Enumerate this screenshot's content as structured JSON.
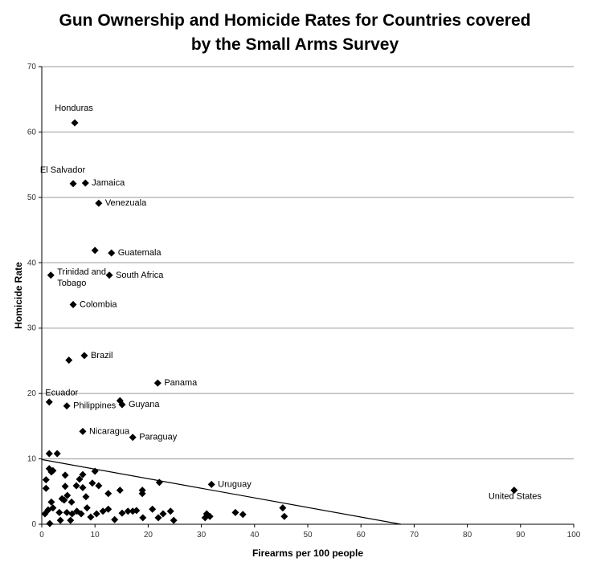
{
  "chart_data": {
    "type": "scatter",
    "title": [
      "Gun Ownership and Homicide Rates for Countries covered",
      "by the Small Arms Survey"
    ],
    "x_label": "Firearms per 100 people",
    "y_label": "Homicide Rate",
    "xlim": [
      0,
      100
    ],
    "xticks": [
      0,
      10,
      20,
      30,
      40,
      50,
      60,
      70,
      80,
      90,
      100
    ],
    "ylim": [
      0,
      70
    ],
    "yticks": [
      0,
      10,
      20,
      30,
      40,
      50,
      60,
      70
    ],
    "grid": true,
    "color": "#000000",
    "x": [
      6.2,
      5.9,
      8.2,
      10.7,
      13.1,
      1.7,
      12.7,
      5.9,
      8.0,
      21.8,
      1.4,
      4.7,
      15.1,
      7.7,
      17.1,
      31.9,
      88.8,
      10.0,
      5.1,
      14.7,
      1.4,
      2.9,
      1.4,
      1.8,
      2.1,
      0.8,
      4.4,
      7.7,
      7.1,
      10.0,
      9.5,
      10.7,
      22.1,
      0.8,
      1.8,
      4.4,
      4.8,
      3.8,
      4.2,
      6.5,
      7.7,
      5.6,
      8.3,
      12.5,
      14.7,
      18.9,
      18.9,
      0.6,
      1.2,
      2.1,
      3.3,
      4.7,
      5.7,
      6.6,
      7.4,
      8.5,
      9.2,
      10.3,
      11.5,
      12.5,
      13.7,
      15.1,
      16.2,
      17.1,
      17.8,
      19.0,
      20.8,
      21.9,
      22.8,
      24.2,
      24.8,
      30.7,
      31.0,
      31.6,
      36.4,
      37.8,
      45.3,
      45.6,
      1.5,
      3.5,
      5.4
    ],
    "y": [
      61.4,
      52.1,
      52.2,
      49.1,
      41.5,
      38.1,
      38.1,
      33.6,
      25.8,
      21.6,
      18.7,
      18.1,
      18.3,
      14.2,
      13.3,
      6.1,
      5.2,
      41.9,
      25.1,
      18.9,
      10.8,
      10.8,
      8.5,
      8.0,
      8.2,
      6.8,
      7.5,
      7.6,
      6.9,
      8.1,
      6.3,
      5.9,
      6.4,
      5.5,
      3.4,
      5.8,
      4.4,
      3.9,
      3.7,
      5.9,
      5.6,
      3.4,
      4.2,
      4.7,
      5.2,
      5.2,
      4.7,
      1.6,
      2.2,
      2.5,
      1.8,
      1.8,
      1.6,
      2.0,
      1.6,
      2.5,
      1.1,
      1.6,
      2.0,
      2.3,
      0.7,
      1.7,
      2.0,
      2.0,
      2.1,
      1.0,
      2.3,
      1.0,
      1.6,
      2.0,
      0.6,
      1.0,
      1.6,
      1.2,
      1.8,
      1.5,
      2.5,
      1.2,
      0.1,
      0.6,
      0.6
    ],
    "labels": [
      "Honduras",
      "El Salvador",
      "Jamaica",
      "Venezuala",
      "Guatemala",
      "Trinidad and Tobago",
      "South Africa",
      "Colombia",
      "Brazil",
      "Panama",
      "Ecuador",
      "Philippines",
      "Guyana",
      "Nicaragua",
      "Paraguay",
      "Uruguay",
      "United States",
      null,
      null,
      null,
      null,
      null,
      null,
      null,
      null,
      null,
      null,
      null,
      null,
      null,
      null,
      null,
      null,
      null,
      null,
      null,
      null,
      null,
      null,
      null,
      null,
      null,
      null,
      null,
      null,
      null,
      null,
      null,
      null,
      null,
      null,
      null,
      null,
      null,
      null,
      null,
      null,
      null,
      null,
      null,
      null,
      null,
      null,
      null,
      null,
      null,
      null,
      null,
      null,
      null,
      null,
      null,
      null,
      null,
      null,
      null,
      null,
      null,
      null,
      null,
      null
    ],
    "trendline": {
      "x": [
        0,
        67.5
      ],
      "y": [
        9.9,
        0
      ]
    }
  }
}
